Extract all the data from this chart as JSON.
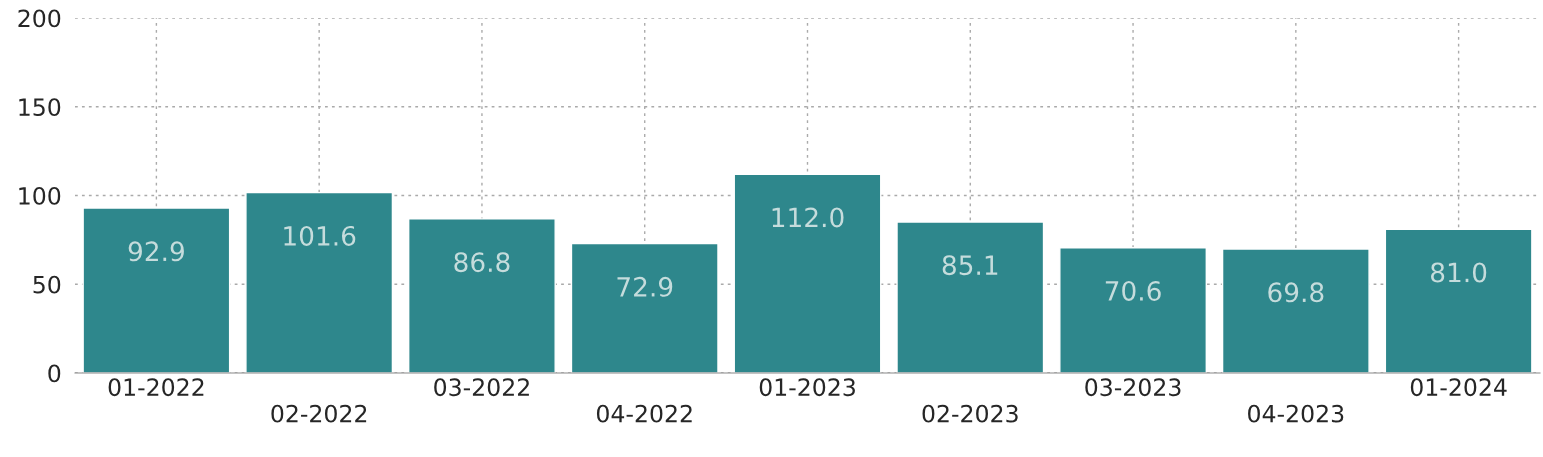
{
  "chart_data": {
    "type": "bar",
    "categories": [
      "01-2022",
      "02-2022",
      "03-2022",
      "04-2022",
      "01-2023",
      "02-2023",
      "03-2023",
      "04-2023",
      "01-2024"
    ],
    "values": [
      92.9,
      101.6,
      86.8,
      72.9,
      112.0,
      85.1,
      70.6,
      69.8,
      81.0
    ],
    "value_labels": [
      "92.9",
      "101.6",
      "86.8",
      "72.9",
      "112.0",
      "85.1",
      "70.6",
      "69.8",
      "81.0"
    ],
    "color": "#2e878c",
    "ylim": [
      0,
      200
    ],
    "yticks": [
      0,
      50,
      100,
      150,
      200
    ],
    "grid": true
  }
}
